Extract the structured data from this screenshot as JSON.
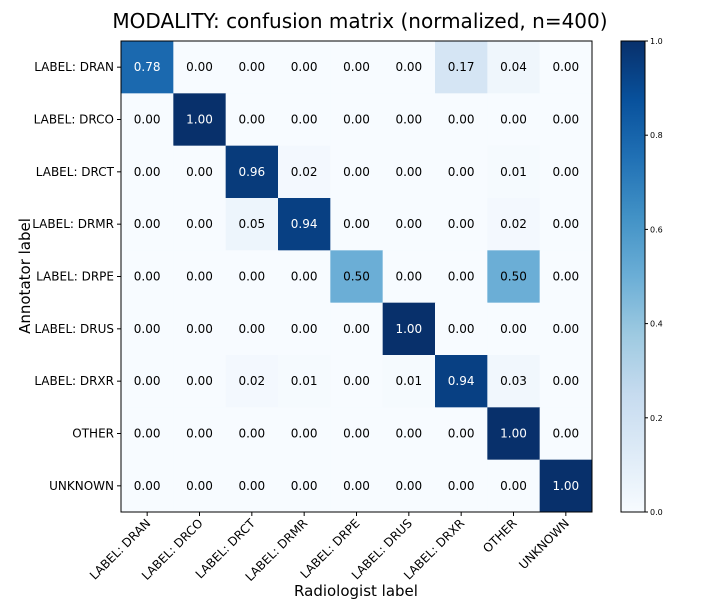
{
  "chart_data": {
    "type": "heatmap",
    "title": "MODALITY: confusion matrix (normalized, n=400)",
    "xlabel": "Radiologist label",
    "ylabel": "Annotator label",
    "row_labels": [
      "LABEL: DRAN",
      "LABEL: DRCO",
      "LABEL: DRCT",
      "LABEL: DRMR",
      "LABEL: DRPE",
      "LABEL: DRUS",
      "LABEL: DRXR",
      "OTHER",
      "UNKNOWN"
    ],
    "col_labels": [
      "LABEL: DRAN",
      "LABEL: DRCO",
      "LABEL: DRCT",
      "LABEL: DRMR",
      "LABEL: DRPE",
      "LABEL: DRUS",
      "LABEL: DRXR",
      "OTHER",
      "UNKNOWN"
    ],
    "values": [
      [
        0.78,
        0.0,
        0.0,
        0.0,
        0.0,
        0.0,
        0.17,
        0.04,
        0.0
      ],
      [
        0.0,
        1.0,
        0.0,
        0.0,
        0.0,
        0.0,
        0.0,
        0.0,
        0.0
      ],
      [
        0.0,
        0.0,
        0.96,
        0.02,
        0.0,
        0.0,
        0.0,
        0.01,
        0.0
      ],
      [
        0.0,
        0.0,
        0.05,
        0.94,
        0.0,
        0.0,
        0.0,
        0.02,
        0.0
      ],
      [
        0.0,
        0.0,
        0.0,
        0.0,
        0.5,
        0.0,
        0.0,
        0.5,
        0.0
      ],
      [
        0.0,
        0.0,
        0.0,
        0.0,
        0.0,
        1.0,
        0.0,
        0.0,
        0.0
      ],
      [
        0.0,
        0.0,
        0.02,
        0.01,
        0.0,
        0.01,
        0.94,
        0.03,
        0.0
      ],
      [
        0.0,
        0.0,
        0.0,
        0.0,
        0.0,
        0.0,
        0.0,
        1.0,
        0.0
      ],
      [
        0.0,
        0.0,
        0.0,
        0.0,
        0.0,
        0.0,
        0.0,
        0.0,
        1.0
      ]
    ],
    "value_format": "0.00",
    "colorbar": {
      "range": [
        0.0,
        1.0
      ],
      "ticks": [
        0.0,
        0.2,
        0.4,
        0.6,
        0.8,
        1.0
      ],
      "tick_labels": [
        "0.0",
        "0.2",
        "0.4",
        "0.6",
        "0.8",
        "1.0"
      ]
    },
    "colormap": "Blues",
    "colors": {
      "low": "#f7fbff",
      "high": "#08306b",
      "text_dark": "#000000",
      "text_light": "#ffffff"
    }
  }
}
